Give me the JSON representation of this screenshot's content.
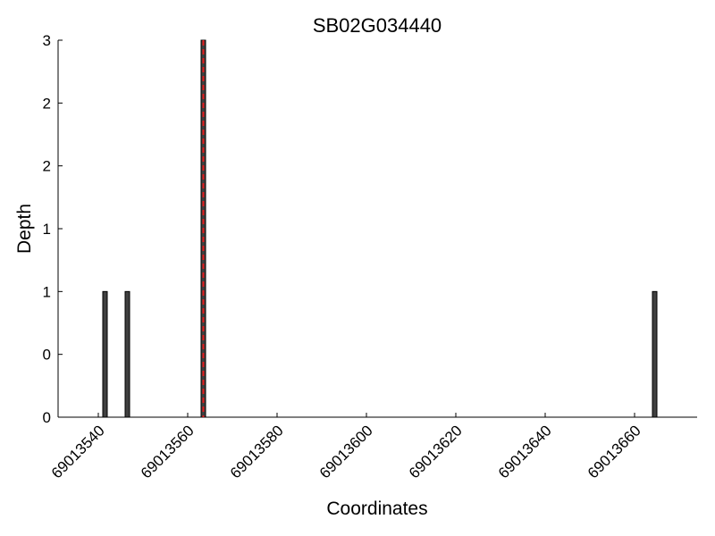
{
  "chart_data": {
    "type": "bar",
    "title": "SB02G034440",
    "x_label": "Coordinates",
    "y_label": "Depth",
    "x": [
      69013541,
      69013546,
      69013563,
      69013664
    ],
    "values": [
      1,
      1,
      3,
      1
    ],
    "color": "#404040",
    "vline": {
      "x": 69013563.5,
      "color": "#e41a1c"
    },
    "xlim": [
      69013531,
      69013674
    ],
    "xticks": [
      69013540,
      69013560,
      69013580,
      69013600,
      69013620,
      69013640,
      69013660
    ],
    "ylim": [
      0,
      3
    ],
    "yticks": [
      0,
      {
        "value": 0.5,
        "label": "0"
      },
      1,
      {
        "value": 1.5,
        "label": "1"
      },
      2,
      {
        "value": 2.5,
        "label": "2"
      },
      3
    ]
  }
}
